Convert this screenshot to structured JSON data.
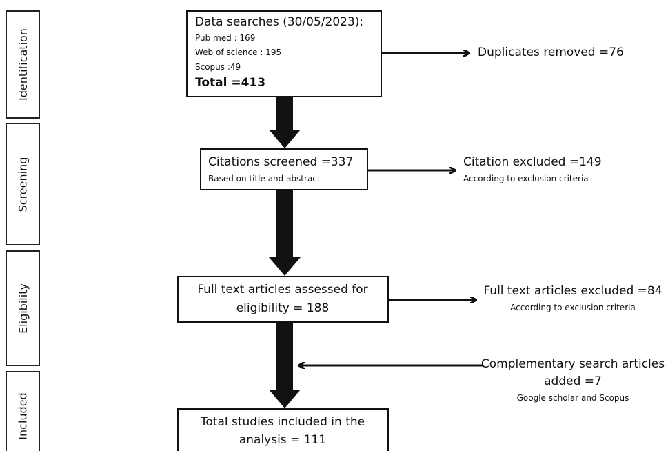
{
  "stages": [
    "Identification",
    "Screening",
    "Eligibility",
    "Included"
  ],
  "boxes": [
    {
      "title": "Data searches (30/05/2023):",
      "lines": [
        "Pub med : 169",
        "Web of science : 195",
        "Scopus :49"
      ],
      "total": "Total =413"
    },
    {
      "title": "Citations screened =337",
      "note": "Based on title and abstract"
    },
    {
      "lines": [
        "Full text articles assessed for",
        "eligibility = 188"
      ]
    },
    {
      "lines": [
        "Total studies included in the",
        "analysis = 111"
      ]
    }
  ],
  "side_notes": [
    {
      "lines": [
        "Duplicates removed =76"
      ]
    },
    {
      "lines": [
        "Citation excluded =149"
      ],
      "note": "According to exclusion criteria"
    },
    {
      "lines": [
        "Full text articles excluded =84"
      ],
      "note": "According to exclusion criteria"
    },
    {
      "lines": [
        "Complementary search articles",
        "added =7"
      ],
      "note": "Google scholar and Scopus"
    }
  ]
}
